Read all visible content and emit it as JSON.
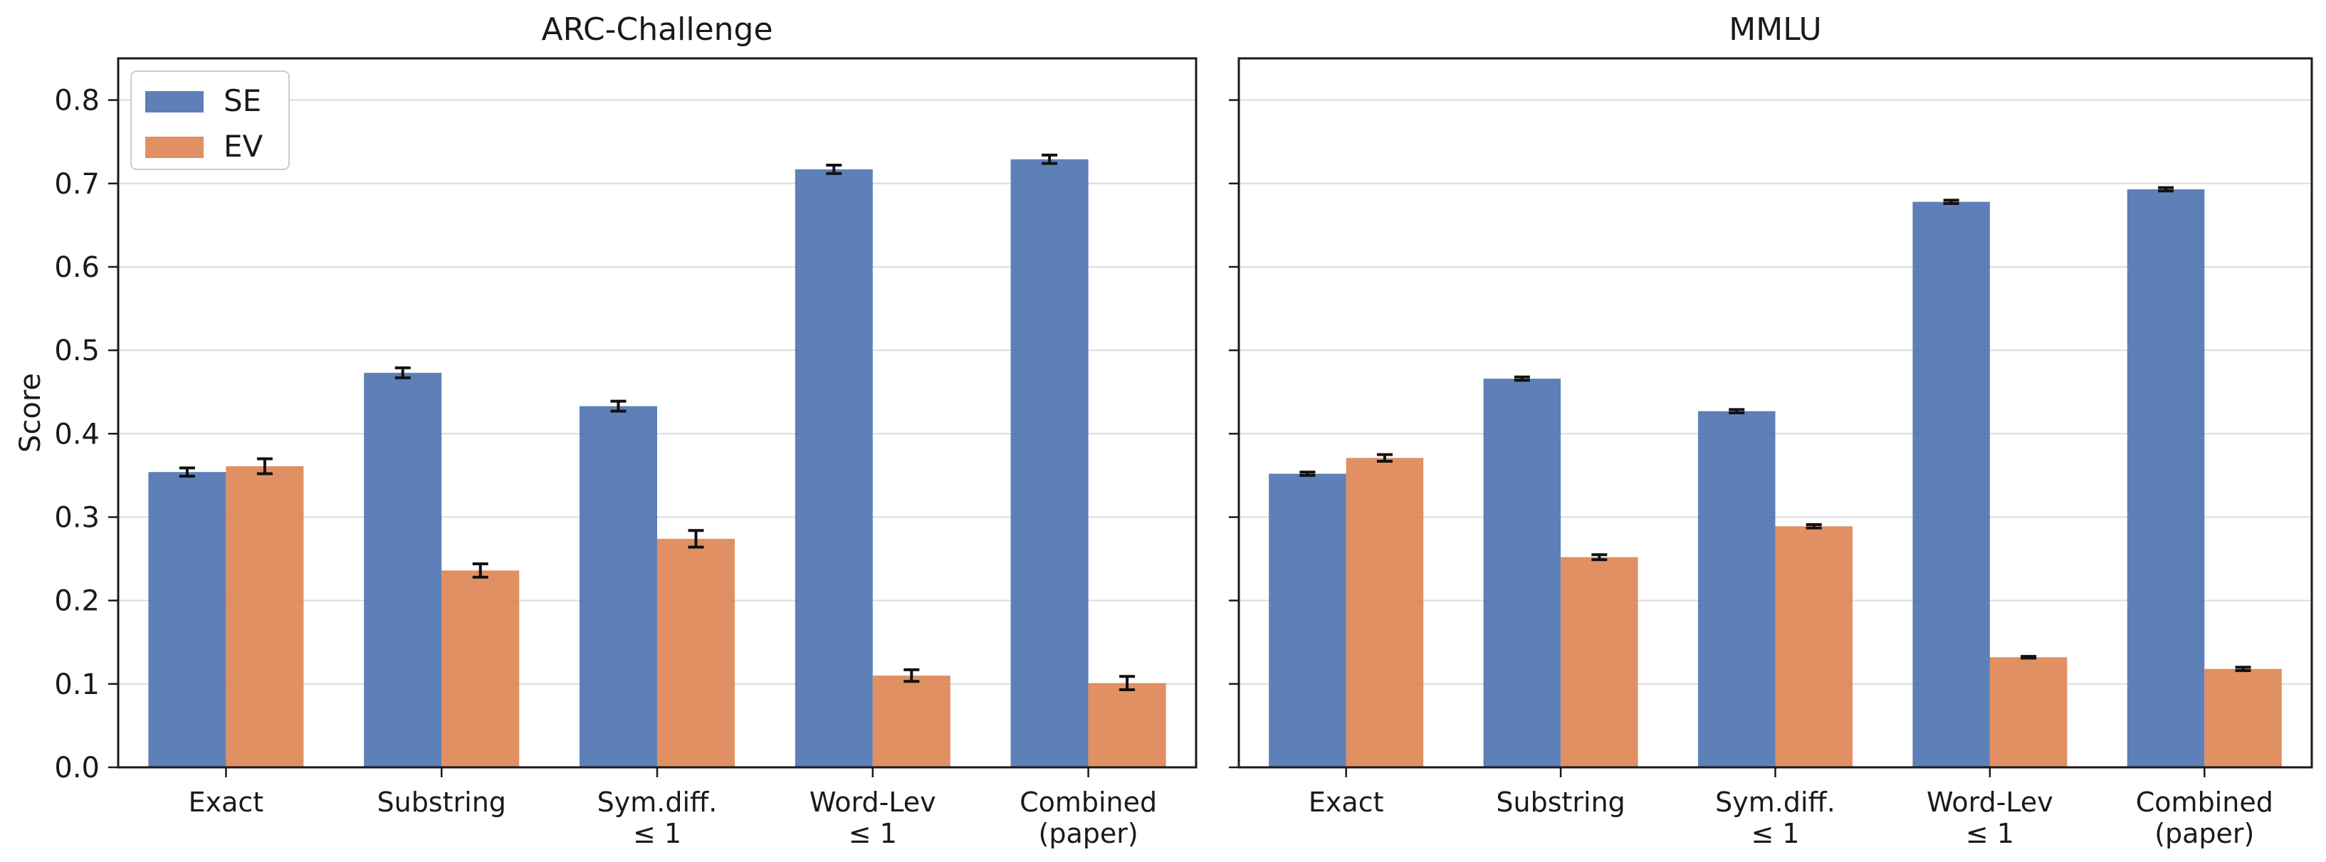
{
  "chart_data": [
    {
      "type": "bar",
      "title": "ARC-Challenge",
      "ylabel": "Score",
      "ylim": [
        0,
        0.85
      ],
      "yticks": [
        "0.0",
        "0.1",
        "0.2",
        "0.3",
        "0.4",
        "0.5",
        "0.6",
        "0.7",
        "0.8"
      ],
      "grid": "horizontal",
      "legend": "top-left",
      "categories": [
        [
          "Exact"
        ],
        [
          "Substring"
        ],
        [
          "Sym.diff.",
          "≤ 1"
        ],
        [
          "Word-Lev",
          "≤ 1"
        ],
        [
          "Combined",
          "(paper)"
        ]
      ],
      "series": [
        {
          "name": "SE",
          "color": "#4c72b0",
          "values": [
            0.354,
            0.473,
            0.433,
            0.717,
            0.729
          ],
          "errors": [
            0.005,
            0.006,
            0.006,
            0.005,
            0.005
          ]
        },
        {
          "name": "EV",
          "color": "#dd8452",
          "values": [
            0.361,
            0.236,
            0.274,
            0.11,
            0.101
          ],
          "errors": [
            0.009,
            0.008,
            0.01,
            0.007,
            0.008
          ]
        }
      ]
    },
    {
      "type": "bar",
      "title": "MMLU",
      "ylabel": "",
      "ylim": [
        0,
        0.85
      ],
      "yticks": [
        "0.0",
        "0.1",
        "0.2",
        "0.3",
        "0.4",
        "0.5",
        "0.6",
        "0.7",
        "0.8"
      ],
      "grid": "horizontal",
      "legend": "",
      "categories": [
        [
          "Exact"
        ],
        [
          "Substring"
        ],
        [
          "Sym.diff.",
          "≤ 1"
        ],
        [
          "Word-Lev",
          "≤ 1"
        ],
        [
          "Combined",
          "(paper)"
        ]
      ],
      "series": [
        {
          "name": "SE",
          "color": "#4c72b0",
          "values": [
            0.352,
            0.466,
            0.427,
            0.678,
            0.693
          ],
          "errors": [
            0.002,
            0.002,
            0.002,
            0.002,
            0.002
          ]
        },
        {
          "name": "EV",
          "color": "#dd8452",
          "values": [
            0.371,
            0.252,
            0.289,
            0.132,
            0.118
          ],
          "errors": [
            0.004,
            0.003,
            0.002,
            0.001,
            0.002
          ]
        }
      ]
    }
  ]
}
